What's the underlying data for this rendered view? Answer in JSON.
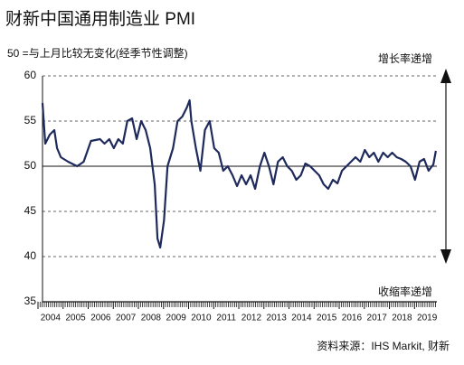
{
  "chart_data": {
    "type": "line",
    "title": "财新中国通用制造业 PMI",
    "subtitle": "50 =与上月比较无变化(经季节性调整)",
    "annotations": {
      "up": "增长率递增",
      "down": "收缩率递增"
    },
    "source": "资料来源：IHS Markit, 财新",
    "series": [
      {
        "name": "PMI",
        "color": "#1f2a5c",
        "x": [
          2004.18,
          2004.29,
          2004.47,
          2004.65,
          2004.76,
          2004.91,
          2005.2,
          2005.56,
          2005.82,
          2006.11,
          2006.47,
          2006.65,
          2006.84,
          2007.02,
          2007.2,
          2007.38,
          2007.56,
          2007.75,
          2007.93,
          2008.11,
          2008.29,
          2008.47,
          2008.65,
          2008.76,
          2008.87,
          2009.02,
          2009.16,
          2009.38,
          2009.56,
          2009.75,
          2009.93,
          2010.04,
          2010.11,
          2010.29,
          2010.47,
          2010.65,
          2010.84,
          2011.02,
          2011.2,
          2011.38,
          2011.56,
          2011.75,
          2011.93,
          2012.11,
          2012.29,
          2012.47,
          2012.65,
          2012.84,
          2013.02,
          2013.2,
          2013.38,
          2013.56,
          2013.75,
          2013.93,
          2014.11,
          2014.29,
          2014.47,
          2014.65,
          2014.84,
          2015.02,
          2015.2,
          2015.38,
          2015.56,
          2015.75,
          2015.93,
          2016.11,
          2016.29,
          2016.47,
          2016.65,
          2016.84,
          2017.02,
          2017.2,
          2017.38,
          2017.56,
          2017.75,
          2017.93,
          2018.11,
          2018.29,
          2018.47,
          2018.65,
          2018.84,
          2019.02,
          2019.2,
          2019.38,
          2019.56,
          2019.75,
          2019.85
        ],
        "values": [
          57,
          52.5,
          53.5,
          54,
          52,
          51,
          50.5,
          50,
          50.5,
          52.8,
          53,
          52.5,
          53,
          52,
          53,
          52.5,
          55,
          55.3,
          53,
          55,
          54,
          52,
          48,
          42,
          41,
          44,
          50,
          52,
          55,
          55.5,
          56.5,
          57.3,
          55,
          52,
          49.5,
          54,
          55,
          52,
          51.5,
          49.5,
          50,
          49,
          47.8,
          49,
          48,
          49,
          47.5,
          50,
          51.5,
          50,
          48,
          50.5,
          51,
          50,
          49.5,
          48.5,
          49,
          50.3,
          50,
          49.5,
          49,
          48,
          47.5,
          48.5,
          48.1,
          49.5,
          50,
          50.5,
          51,
          50.5,
          51.8,
          51,
          51.5,
          50.5,
          51.5,
          51,
          51.5,
          51,
          50.8,
          50.5,
          50,
          48.5,
          50.5,
          50.8,
          49.5,
          50.2,
          51.7
        ]
      }
    ],
    "xlim": [
      2004,
      2019.89
    ],
    "xticks": [
      2004,
      2005,
      2006,
      2007,
      2008,
      2009,
      2010,
      2011,
      2012,
      2013,
      2014,
      2015,
      2016,
      2017,
      2018,
      2019
    ],
    "ylim": [
      35,
      60
    ],
    "yticks": [
      35,
      40,
      45,
      50,
      55,
      60
    ],
    "baseline": 50,
    "grid": true
  }
}
